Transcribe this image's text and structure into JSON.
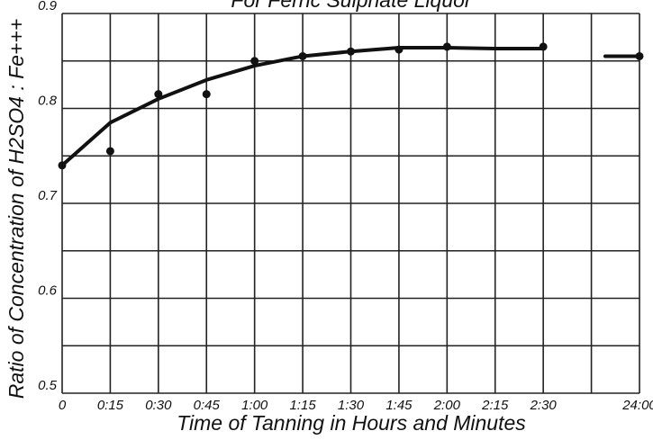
{
  "chart_data": {
    "type": "line",
    "title": "For Ferric Sulphate Liquor",
    "x_label": "Time of Tanning in Hours and Minutes",
    "y_label": "Ratio of Concentration of H2SO4 : Fe+++",
    "categories": [
      "0",
      "0:15",
      "0:30",
      "0:45",
      "1:00",
      "1:15",
      "1:30",
      "1:45",
      "2:00",
      "2:15",
      "2:30",
      null,
      "24:00"
    ],
    "series": [
      {
        "color": "#111",
        "marker": true,
        "values": [
          0.74,
          0.755,
          0.815,
          0.815,
          0.85,
          0.855,
          0.86,
          0.862,
          0.865,
          null,
          0.865,
          null,
          0.855
        ]
      },
      {
        "color": "#111",
        "marker": false,
        "values": [
          0.74,
          0.785,
          0.81,
          0.83,
          0.845,
          0.855,
          0.86,
          0.864,
          0.864,
          0.863,
          0.863,
          null,
          0.855
        ]
      }
    ],
    "ylim": [
      0.5,
      0.9
    ],
    "yticks": [
      0.5,
      0.6,
      0.7,
      0.8,
      0.9
    ],
    "minor_yticks": [
      0.55,
      0.65,
      0.75,
      0.85
    ],
    "grid": true
  }
}
